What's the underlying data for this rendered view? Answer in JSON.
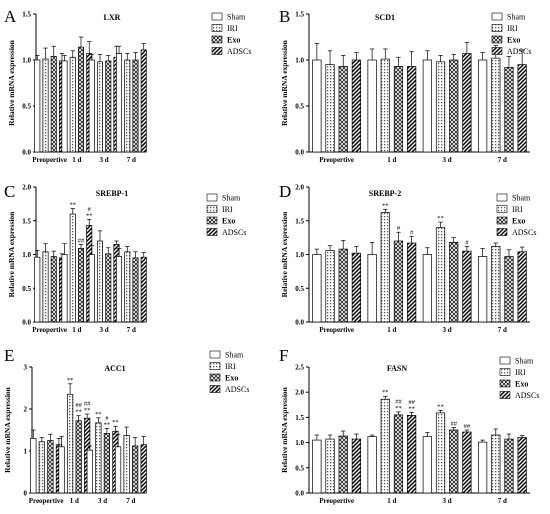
{
  "chart_data": [
    {
      "type": "bar",
      "panel": "A",
      "title": "LXR",
      "ylabel": "Relative mRNA expression",
      "categories": [
        "Preopertive",
        "1 d",
        "3 d",
        "7 d"
      ],
      "ylim": [
        0,
        1.5
      ],
      "yticks": [
        "0.0",
        "0.5",
        "1.0",
        "1.5"
      ],
      "series": [
        {
          "name": "Sham",
          "values": [
            1.0,
            0.99,
            1.0,
            1.07
          ],
          "errors": [
            0.05,
            0.06,
            0.06,
            0.08
          ]
        },
        {
          "name": "IRI",
          "values": [
            1.01,
            1.03,
            0.98,
            1.0
          ],
          "errors": [
            0.12,
            0.07,
            0.08,
            0.07
          ]
        },
        {
          "name": "Exo",
          "values": [
            1.04,
            1.14,
            0.99,
            1.0
          ],
          "errors": [
            0.11,
            0.11,
            0.06,
            0.08
          ]
        },
        {
          "name": "ADSCs",
          "values": [
            0.99,
            1.07,
            1.03,
            1.11
          ],
          "errors": [
            0.08,
            0.13,
            0.12,
            0.07
          ]
        }
      ],
      "annotations": []
    },
    {
      "type": "bar",
      "panel": "B",
      "title": "SCD1",
      "ylabel": "Relative mRNA expression",
      "categories": [
        "Preopertive",
        "1 d",
        "3 d",
        "7 d"
      ],
      "ylim": [
        0,
        1.5
      ],
      "yticks": [
        "0.0",
        "0.5",
        "1.0",
        "1.5"
      ],
      "series": [
        {
          "name": "Sham",
          "values": [
            1.0,
            1.0,
            1.0,
            1.0
          ],
          "errors": [
            0.18,
            0.12,
            0.1,
            0.08
          ]
        },
        {
          "name": "IRI",
          "values": [
            0.95,
            1.01,
            0.98,
            1.02
          ],
          "errors": [
            0.15,
            0.11,
            0.07,
            0.14
          ]
        },
        {
          "name": "Exo",
          "values": [
            0.93,
            0.93,
            1.0,
            0.92
          ],
          "errors": [
            0.12,
            0.1,
            0.06,
            0.12
          ]
        },
        {
          "name": "ADSCs",
          "values": [
            1.0,
            0.93,
            1.07,
            0.95
          ],
          "errors": [
            0.08,
            0.16,
            0.12,
            0.16
          ]
        }
      ],
      "annotations": []
    },
    {
      "type": "bar",
      "panel": "C",
      "title": "SREBP-1",
      "ylabel": "Relative mRNA expression",
      "categories": [
        "Preopertive",
        "1 d",
        "3 d",
        "7 d"
      ],
      "ylim": [
        0,
        2.0
      ],
      "yticks": [
        "0.0",
        "0.5",
        "1.0",
        "1.5",
        "2.0"
      ],
      "series": [
        {
          "name": "Sham",
          "values": [
            0.96,
            1.0,
            1.0,
            0.97
          ],
          "errors": [
            0.1,
            0.16,
            0.13,
            0.12
          ]
        },
        {
          "name": "IRI",
          "values": [
            1.04,
            1.6,
            1.2,
            1.04
          ],
          "errors": [
            0.12,
            0.08,
            0.15,
            0.08
          ]
        },
        {
          "name": "Exo",
          "values": [
            0.97,
            1.09,
            1.01,
            0.95
          ],
          "errors": [
            0.08,
            0.06,
            0.09,
            0.09
          ]
        },
        {
          "name": "ADSCs",
          "values": [
            0.95,
            1.43,
            1.15,
            0.96
          ],
          "errors": [
            0.06,
            0.09,
            0.05,
            0.07
          ]
        }
      ],
      "annotations": [
        {
          "category": 1,
          "series": 1,
          "lines": [
            "**"
          ]
        },
        {
          "category": 1,
          "series": 2,
          "lines": [
            "##"
          ]
        },
        {
          "category": 1,
          "series": 3,
          "lines": [
            "#",
            "**"
          ]
        }
      ]
    },
    {
      "type": "bar",
      "panel": "D",
      "title": "SREBP-2",
      "ylabel": "Relative mRNA expression",
      "categories": [
        "Preopertive",
        "1 d",
        "3 d",
        "7 d"
      ],
      "ylim": [
        0,
        2.0
      ],
      "yticks": [
        "0.0",
        "0.5",
        "1.0",
        "1.5",
        "2.0"
      ],
      "series": [
        {
          "name": "Sham",
          "values": [
            1.0,
            1.0,
            1.0,
            0.97
          ],
          "errors": [
            0.08,
            0.18,
            0.1,
            0.12
          ]
        },
        {
          "name": "IRI",
          "values": [
            1.06,
            1.62,
            1.4,
            1.12
          ],
          "errors": [
            0.07,
            0.05,
            0.08,
            0.05
          ]
        },
        {
          "name": "Exo",
          "values": [
            1.08,
            1.2,
            1.18,
            0.97
          ],
          "errors": [
            0.13,
            0.13,
            0.07,
            0.1
          ]
        },
        {
          "name": "ADSCs",
          "values": [
            1.02,
            1.17,
            1.05,
            1.04
          ],
          "errors": [
            0.1,
            0.1,
            0.07,
            0.07
          ]
        }
      ],
      "annotations": [
        {
          "category": 1,
          "series": 1,
          "lines": [
            "**"
          ]
        },
        {
          "category": 1,
          "series": 2,
          "lines": [
            "#"
          ]
        },
        {
          "category": 1,
          "series": 3,
          "lines": [
            "#"
          ]
        },
        {
          "category": 2,
          "series": 1,
          "lines": [
            "**"
          ]
        },
        {
          "category": 2,
          "series": 3,
          "lines": [
            "#"
          ]
        }
      ]
    },
    {
      "type": "bar",
      "panel": "E",
      "title": "ACC1",
      "ylabel": "Relative mRNA expression",
      "categories": [
        "Preopertive",
        "1 d",
        "3 d",
        "7 d"
      ],
      "ylim": [
        0,
        3
      ],
      "yticks": [
        "0",
        "1",
        "2",
        "3"
      ],
      "series": [
        {
          "name": "Sham",
          "values": [
            1.3,
            1.1,
            1.02,
            1.1
          ],
          "errors": [
            0.2,
            0.25,
            0.1,
            0.3
          ]
        },
        {
          "name": "IRI",
          "values": [
            1.22,
            2.35,
            1.67,
            1.37
          ],
          "errors": [
            0.1,
            0.25,
            0.12,
            0.2
          ]
        },
        {
          "name": "Exo",
          "values": [
            1.25,
            1.72,
            1.42,
            1.12
          ],
          "errors": [
            0.15,
            0.12,
            0.12,
            0.2
          ]
        },
        {
          "name": "ADSCs",
          "values": [
            1.15,
            1.78,
            1.47,
            1.15
          ],
          "errors": [
            0.15,
            0.1,
            0.12,
            0.2
          ]
        }
      ],
      "annotations": [
        {
          "category": 1,
          "series": 1,
          "lines": [
            "**"
          ]
        },
        {
          "category": 1,
          "series": 2,
          "lines": [
            "##",
            "**"
          ]
        },
        {
          "category": 1,
          "series": 3,
          "lines": [
            "##",
            "**"
          ]
        },
        {
          "category": 2,
          "series": 1,
          "lines": [
            "**"
          ]
        },
        {
          "category": 2,
          "series": 2,
          "lines": [
            "#",
            "**"
          ]
        },
        {
          "category": 2,
          "series": 3,
          "lines": [
            "**"
          ]
        }
      ]
    },
    {
      "type": "bar",
      "panel": "F",
      "title": "FASN",
      "ylabel": "Relative mRNA expression",
      "categories": [
        "Preopertive",
        "1 d",
        "3 d",
        "7 d"
      ],
      "ylim": [
        0,
        2.5
      ],
      "yticks": [
        "0.0",
        "0.5",
        "1.0",
        "1.5",
        "2.0",
        "2.5"
      ],
      "series": [
        {
          "name": "Sham",
          "values": [
            1.05,
            1.12,
            1.12,
            1.01
          ],
          "errors": [
            0.1,
            0.03,
            0.08,
            0.04
          ]
        },
        {
          "name": "IRI",
          "values": [
            1.07,
            1.86,
            1.59,
            1.15
          ],
          "errors": [
            0.08,
            0.06,
            0.05,
            0.12
          ]
        },
        {
          "name": "Exo",
          "values": [
            1.13,
            1.55,
            1.25,
            1.07
          ],
          "errors": [
            0.1,
            0.06,
            0.05,
            0.1
          ]
        },
        {
          "name": "ADSCs",
          "values": [
            1.07,
            1.54,
            1.21,
            1.1
          ],
          "errors": [
            0.1,
            0.06,
            0.04,
            0.04
          ]
        }
      ],
      "annotations": [
        {
          "category": 1,
          "series": 1,
          "lines": [
            "**"
          ]
        },
        {
          "category": 1,
          "series": 2,
          "lines": [
            "##",
            "**"
          ]
        },
        {
          "category": 1,
          "series": 3,
          "lines": [
            "##",
            "**"
          ]
        },
        {
          "category": 2,
          "series": 1,
          "lines": [
            "**"
          ]
        },
        {
          "category": 2,
          "series": 2,
          "lines": [
            "##"
          ]
        },
        {
          "category": 2,
          "series": 3,
          "lines": [
            "##"
          ]
        }
      ]
    }
  ],
  "pattern_icons": [
    "blank-pattern",
    "fine-dot-pattern",
    "crosshatch-pattern",
    "diagonal-stripe-pattern"
  ]
}
